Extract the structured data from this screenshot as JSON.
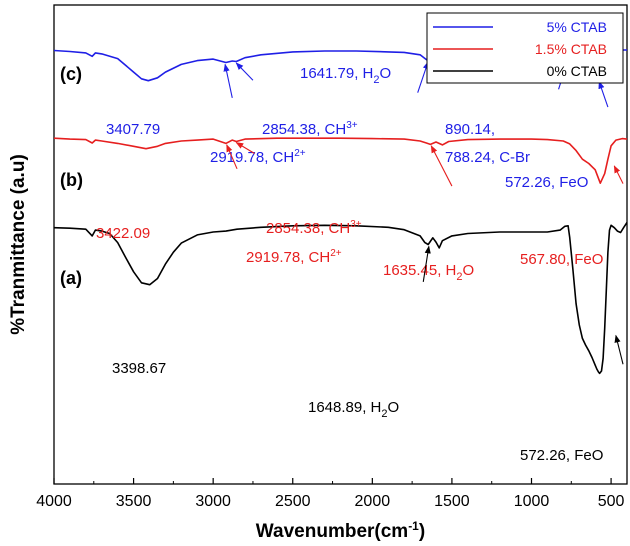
{
  "chart_data": {
    "type": "line",
    "xlabel_main": "Wavenumber(cm",
    "xlabel_sup": "-1",
    "xlabel_end": ")",
    "ylabel": "%Tranmittance (a.u)",
    "xlim": [
      4000,
      400
    ],
    "x_ticks": [
      "4000",
      "3500",
      "3000",
      "2500",
      "2000",
      "1500",
      "1000",
      "500"
    ],
    "x_tick_values": [
      4000,
      3500,
      3000,
      2500,
      2000,
      1500,
      1000,
      500
    ],
    "ylim": [
      0,
      100
    ],
    "legend_position": "top-right",
    "panel_labels": [
      "(c)",
      "(b)",
      "(a)"
    ],
    "series": [
      {
        "name": "5% CTAB",
        "color": "#1f1fe6",
        "panel": "(c)",
        "points": [
          [
            4000,
            90.5
          ],
          [
            3900,
            90.3
          ],
          [
            3800,
            90.0
          ],
          [
            3760,
            89.3
          ],
          [
            3740,
            90.0
          ],
          [
            3700,
            89.8
          ],
          [
            3600,
            88.8
          ],
          [
            3500,
            86.0
          ],
          [
            3450,
            84.6
          ],
          [
            3407.79,
            84.2
          ],
          [
            3350,
            84.8
          ],
          [
            3300,
            86.0
          ],
          [
            3200,
            87.6
          ],
          [
            3100,
            88.4
          ],
          [
            3000,
            88.7
          ],
          [
            2919.78,
            88.0
          ],
          [
            2880,
            88.3
          ],
          [
            2854.38,
            88.2
          ],
          [
            2800,
            89.0
          ],
          [
            2700,
            89.6
          ],
          [
            2500,
            90.2
          ],
          [
            2300,
            90.4
          ],
          [
            2100,
            90.4
          ],
          [
            1900,
            90.2
          ],
          [
            1800,
            90.1
          ],
          [
            1700,
            89.6
          ],
          [
            1660,
            88.6
          ],
          [
            1641.79,
            88.2
          ],
          [
            1620,
            89.2
          ],
          [
            1580,
            88.9
          ],
          [
            1550,
            89.6
          ],
          [
            1400,
            90.0
          ],
          [
            1250,
            90.2
          ],
          [
            1100,
            90.0
          ],
          [
            1000,
            89.7
          ],
          [
            930,
            89.2
          ],
          [
            890.14,
            86.2
          ],
          [
            860,
            88.6
          ],
          [
            820,
            89.0
          ],
          [
            788.24,
            87.4
          ],
          [
            760,
            88.9
          ],
          [
            720,
            90.2
          ],
          [
            680,
            89.6
          ],
          [
            640,
            87.6
          ],
          [
            600,
            84.8
          ],
          [
            572.26,
            84.3
          ],
          [
            540,
            86.2
          ],
          [
            500,
            89.4
          ],
          [
            470,
            90.4
          ],
          [
            420,
            90.6
          ],
          [
            400,
            90.6
          ]
        ]
      },
      {
        "name": "1.5% CTAB",
        "color": "#e61f1f",
        "panel": "(b)",
        "points": [
          [
            4000,
            72.2
          ],
          [
            3900,
            72.0
          ],
          [
            3800,
            71.9
          ],
          [
            3760,
            71.2
          ],
          [
            3740,
            71.8
          ],
          [
            3700,
            71.6
          ],
          [
            3600,
            71.1
          ],
          [
            3500,
            70.5
          ],
          [
            3422.09,
            70.0
          ],
          [
            3350,
            70.5
          ],
          [
            3300,
            71.1
          ],
          [
            3200,
            71.6
          ],
          [
            3100,
            71.8
          ],
          [
            3000,
            72.0
          ],
          [
            2919.78,
            71.1
          ],
          [
            2880,
            71.8
          ],
          [
            2854.38,
            71.5
          ],
          [
            2800,
            72.0
          ],
          [
            2600,
            72.2
          ],
          [
            2400,
            72.2
          ],
          [
            2200,
            72.2
          ],
          [
            2000,
            72.1
          ],
          [
            1800,
            72.0
          ],
          [
            1700,
            71.6
          ],
          [
            1660,
            71.2
          ],
          [
            1635.45,
            70.9
          ],
          [
            1600,
            71.4
          ],
          [
            1560,
            70.8
          ],
          [
            1520,
            71.5
          ],
          [
            1400,
            71.9
          ],
          [
            1200,
            72.0
          ],
          [
            1000,
            72.0
          ],
          [
            900,
            71.9
          ],
          [
            800,
            71.6
          ],
          [
            760,
            71.0
          ],
          [
            720,
            69.6
          ],
          [
            680,
            67.8
          ],
          [
            640,
            66.9
          ],
          [
            600,
            65.6
          ],
          [
            567.8,
            62.8
          ],
          [
            540,
            64.8
          ],
          [
            520,
            67.8
          ],
          [
            500,
            70.6
          ],
          [
            470,
            71.8
          ],
          [
            430,
            72.1
          ],
          [
            400,
            72.0
          ]
        ]
      },
      {
        "name": "0% CTAB",
        "color": "#000000",
        "panel": "(a)",
        "points": [
          [
            4000,
            53.5
          ],
          [
            3900,
            53.4
          ],
          [
            3800,
            53.2
          ],
          [
            3760,
            51.8
          ],
          [
            3740,
            53.0
          ],
          [
            3700,
            52.8
          ],
          [
            3650,
            52.3
          ],
          [
            3600,
            50.4
          ],
          [
            3550,
            47.3
          ],
          [
            3500,
            44.3
          ],
          [
            3450,
            42.0
          ],
          [
            3398.67,
            41.6
          ],
          [
            3350,
            42.9
          ],
          [
            3300,
            45.9
          ],
          [
            3250,
            48.4
          ],
          [
            3200,
            50.3
          ],
          [
            3100,
            52.0
          ],
          [
            3000,
            52.6
          ],
          [
            2920,
            52.8
          ],
          [
            2850,
            53.2
          ],
          [
            2700,
            53.6
          ],
          [
            2500,
            53.9
          ],
          [
            2300,
            54.0
          ],
          [
            2100,
            53.9
          ],
          [
            1900,
            53.6
          ],
          [
            1800,
            53.1
          ],
          [
            1700,
            51.8
          ],
          [
            1670,
            50.4
          ],
          [
            1648.89,
            50.0
          ],
          [
            1620,
            51.4
          ],
          [
            1600,
            50.5
          ],
          [
            1580,
            49.3
          ],
          [
            1560,
            50.8
          ],
          [
            1500,
            51.8
          ],
          [
            1400,
            52.3
          ],
          [
            1200,
            52.6
          ],
          [
            1000,
            52.6
          ],
          [
            900,
            52.6
          ],
          [
            820,
            53.0
          ],
          [
            790,
            53.8
          ],
          [
            770,
            53.9
          ],
          [
            760,
            51.5
          ],
          [
            740,
            44.8
          ],
          [
            720,
            37.6
          ],
          [
            700,
            33.2
          ],
          [
            680,
            30.4
          ],
          [
            660,
            29.0
          ],
          [
            640,
            27.8
          ],
          [
            620,
            26.4
          ],
          [
            600,
            24.8
          ],
          [
            590,
            24.0
          ],
          [
            580,
            23.4
          ],
          [
            572.26,
            23.1
          ],
          [
            560,
            23.6
          ],
          [
            550,
            26.2
          ],
          [
            540,
            32.5
          ],
          [
            530,
            40.4
          ],
          [
            520,
            48.4
          ],
          [
            510,
            53.0
          ],
          [
            500,
            54.0
          ],
          [
            480,
            53.5
          ],
          [
            460,
            52.8
          ],
          [
            440,
            52.5
          ],
          [
            420,
            53.6
          ],
          [
            400,
            54.6
          ]
        ]
      }
    ],
    "annotations": [
      {
        "id": "c-1641",
        "color": "#1f1fe6",
        "text": "1641.79, H",
        "sub": "2",
        "tail": "O",
        "arrow_from": [
          1715,
          81.7
        ],
        "arrow_to": [
          1650,
          88.1
        ]
      },
      {
        "id": "c-3407",
        "color": "#1f1fe6",
        "text": "3407.79",
        "sub": "",
        "tail": "",
        "arrow_from": null,
        "arrow_to": null
      },
      {
        "id": "c-2854",
        "color": "#1f1fe6",
        "text": "2854.38, CH",
        "sup": "3+",
        "arrow_from": [
          2750,
          84.3
        ],
        "arrow_to": [
          2855,
          87.9
        ]
      },
      {
        "id": "c-2919",
        "color": "#1f1fe6",
        "text": "2919.78, CH",
        "sup": "2+",
        "arrow_from": [
          2880,
          80.6
        ],
        "arrow_to": [
          2925,
          87.6
        ]
      },
      {
        "id": "c-890",
        "color": "#1f1fe6",
        "text": "890.14,",
        "arrow_from": [
          925,
          83.7
        ],
        "arrow_to": [
          870,
          86.0
        ]
      },
      {
        "id": "c-788",
        "color": "#1f1fe6",
        "text": "788.24, C-Br",
        "arrow_from": [
          830,
          82.4
        ],
        "arrow_to": [
          785,
          87.1
        ]
      },
      {
        "id": "c-572",
        "color": "#1f1fe6",
        "text": "572.26, FeO",
        "arrow_from": [
          520,
          78.7
        ],
        "arrow_to": [
          575,
          84.0
        ]
      },
      {
        "id": "b-3422",
        "color": "#e61f1f",
        "text": "3422.09",
        "arrow_from": null,
        "arrow_to": null
      },
      {
        "id": "b-2854",
        "color": "#e61f1f",
        "text": "2854.38, CH",
        "sup": "3+",
        "arrow_from": [
          2740,
          69.0
        ],
        "arrow_to": [
          2855,
          71.3
        ]
      },
      {
        "id": "b-2919",
        "color": "#e61f1f",
        "text": "2919.78, CH",
        "sup": "2+",
        "arrow_from": [
          2850,
          65.8
        ],
        "arrow_to": [
          2915,
          70.8
        ]
      },
      {
        "id": "b-1635",
        "color": "#e61f1f",
        "text": "1635.45, H",
        "sub": "2",
        "tail": "O",
        "arrow_from": [
          1500,
          62.2
        ],
        "arrow_to": [
          1630,
          70.6
        ]
      },
      {
        "id": "b-567",
        "color": "#e61f1f",
        "text": "567.80, FeO",
        "arrow_from": [
          425,
          62.7
        ],
        "arrow_to": [
          480,
          66.4
        ]
      },
      {
        "id": "a-3398",
        "color": "#000000",
        "text": "3398.67",
        "arrow_from": null,
        "arrow_to": null
      },
      {
        "id": "a-1648",
        "color": "#000000",
        "text": "1648.89, H",
        "sub": "2",
        "tail": "O",
        "arrow_from": [
          1680,
          42.2
        ],
        "arrow_to": [
          1645,
          49.6
        ]
      },
      {
        "id": "a-572",
        "color": "#000000",
        "text": "572.26, FeO",
        "arrow_from": [
          425,
          25.0
        ],
        "arrow_to": [
          470,
          31.0
        ]
      }
    ]
  }
}
